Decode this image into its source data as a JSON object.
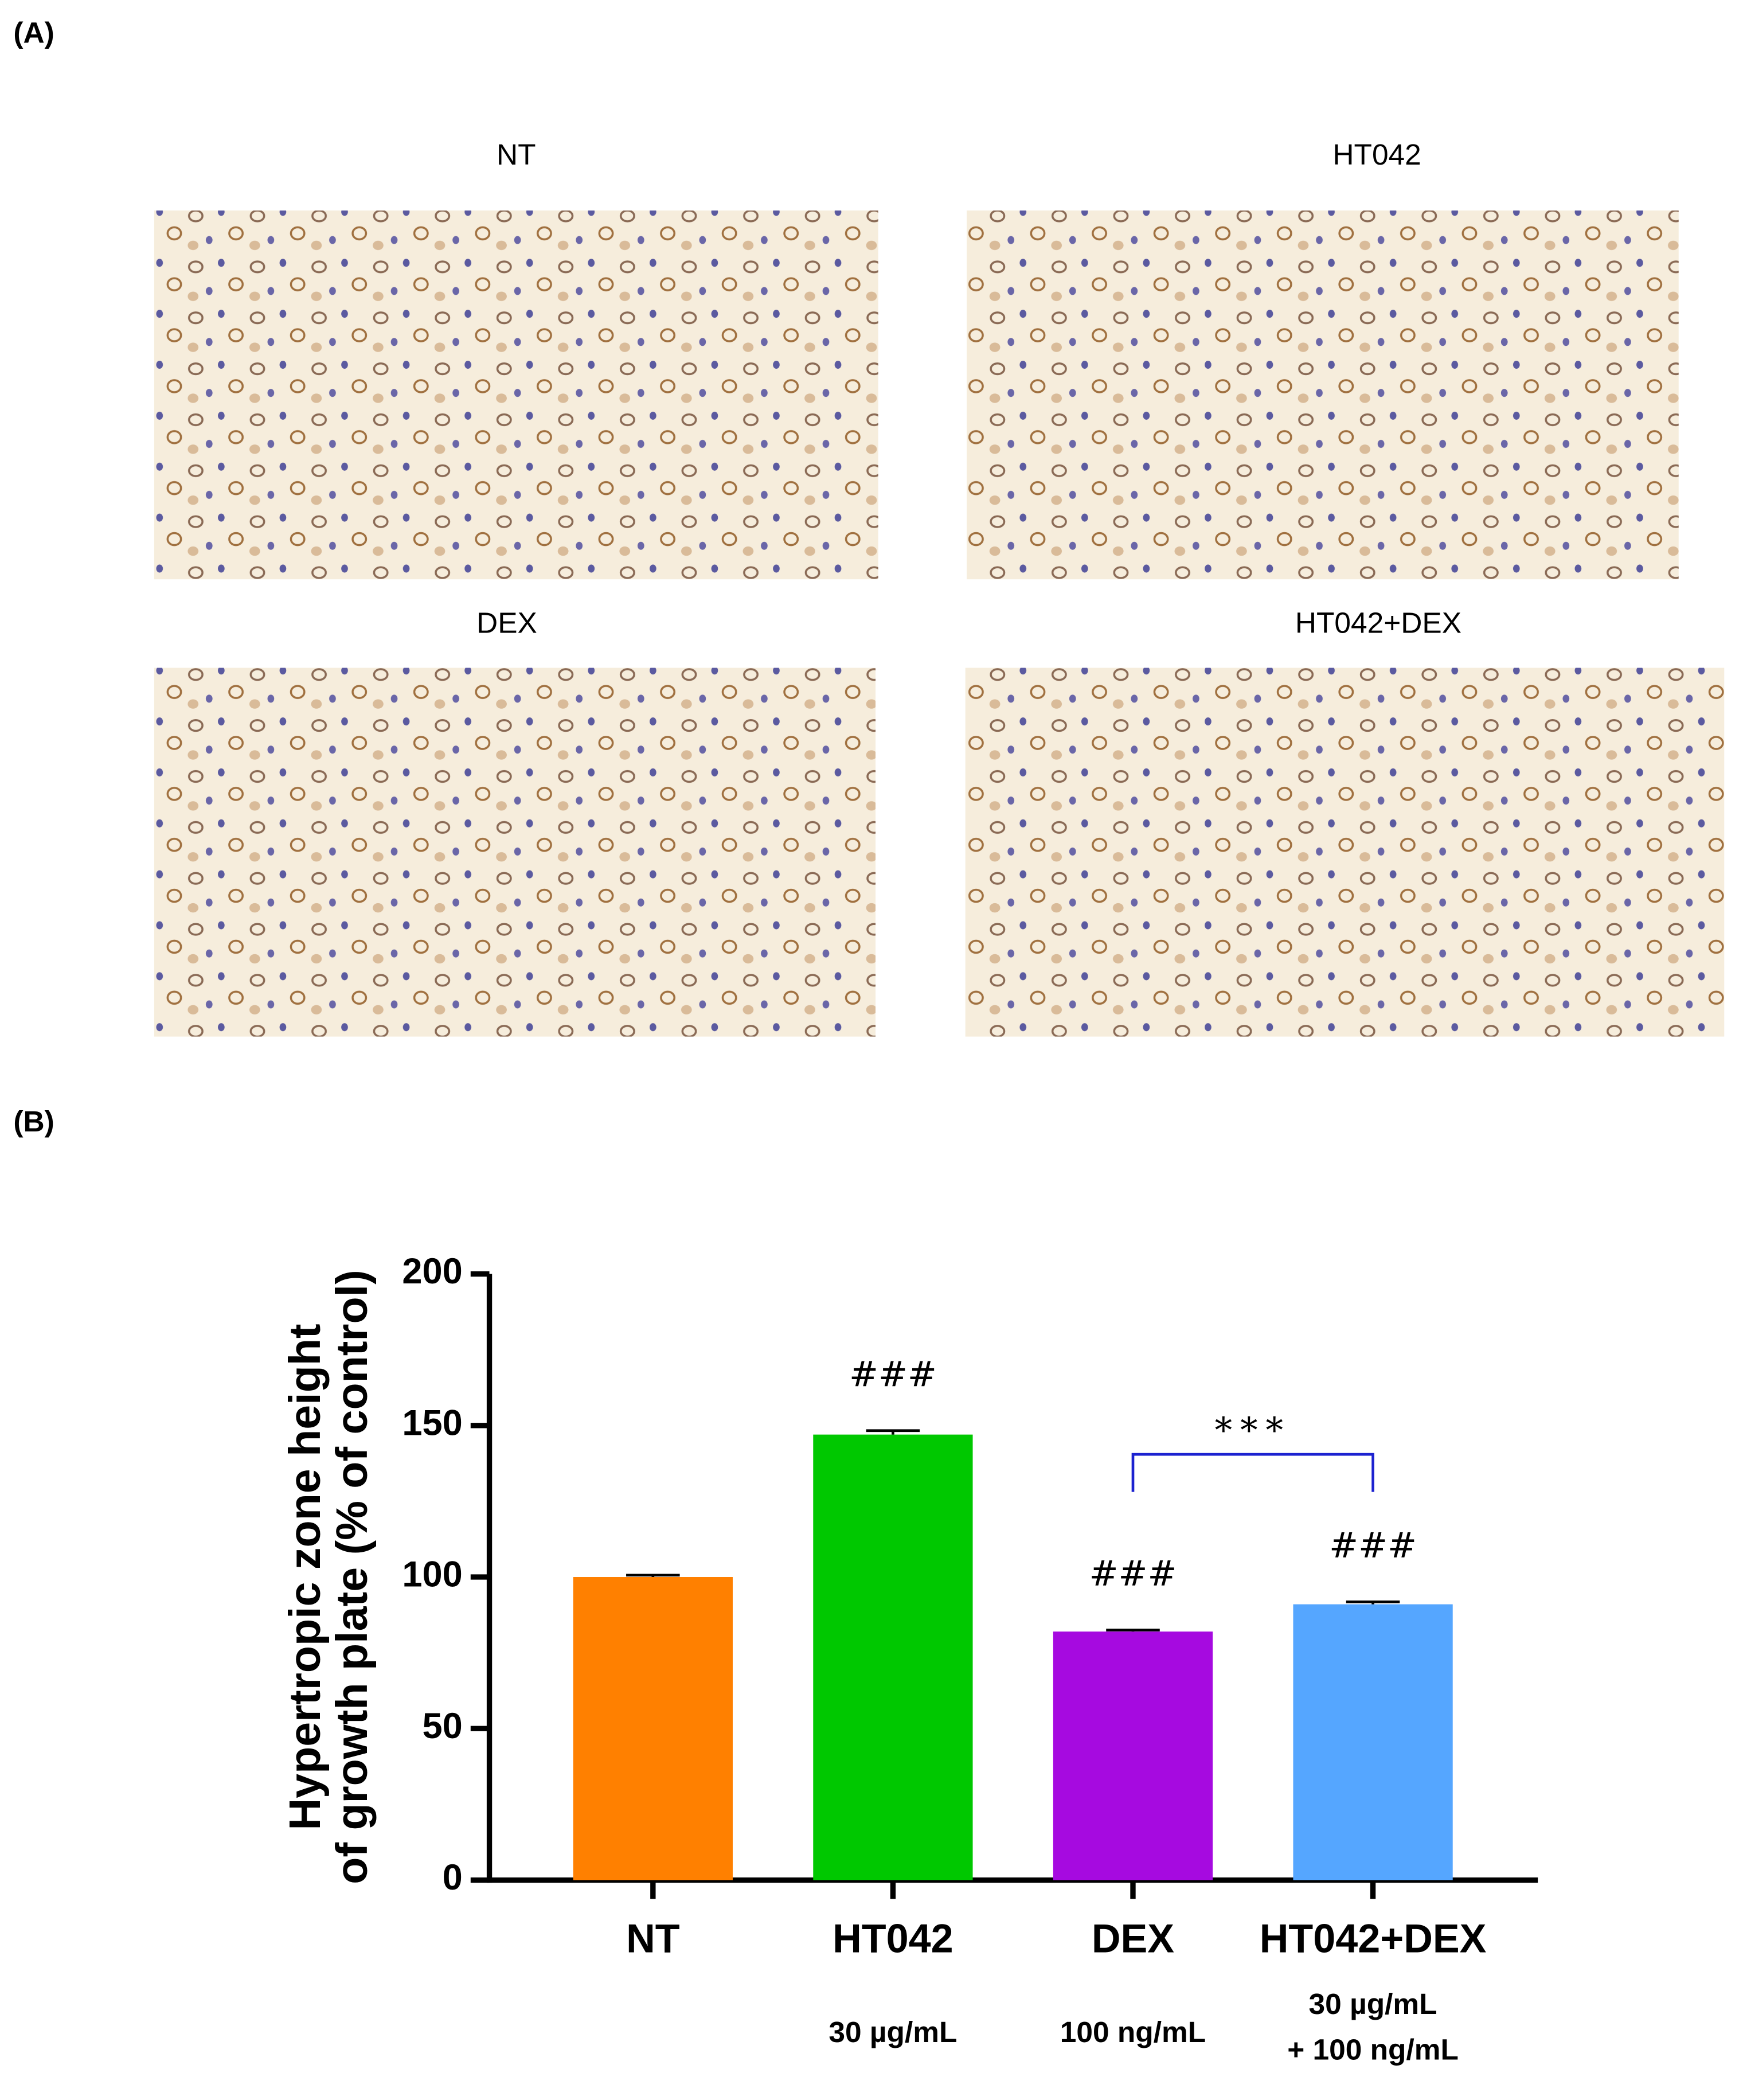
{
  "panel_a": {
    "label": "(A)",
    "images": [
      {
        "title": "NT"
      },
      {
        "title": "HT042"
      },
      {
        "title": "DEX"
      },
      {
        "title": "HT042+DEX"
      }
    ]
  },
  "panel_b": {
    "label": "(B)"
  },
  "chart_data": {
    "type": "bar",
    "y_label": [
      "Hypertropic zone height",
      "of growth plate (% of control)"
    ],
    "categories": [
      "NT",
      "HT042",
      "DEX",
      "HT042+DEX"
    ],
    "sublabels": [
      null,
      [
        "30 µg/mL"
      ],
      [
        "100 ng/mL"
      ],
      [
        "30 µg/mL",
        "+ 100 ng/mL"
      ]
    ],
    "values": [
      100,
      147,
      82,
      91
    ],
    "errors": [
      0.6,
      1.3,
      0.5,
      0.8
    ],
    "colors": [
      "#ff8000",
      "#00c800",
      "#a60ae0",
      "#55a6ff"
    ],
    "significance": [
      null,
      "###",
      "###",
      "###"
    ],
    "comparison": {
      "label": "***",
      "from": "DEX",
      "to": "HT042+DEX",
      "color": "#1c22d0"
    },
    "ylim": [
      0,
      200
    ],
    "yticks": [
      0,
      50,
      100,
      150,
      200
    ],
    "grid": false
  }
}
